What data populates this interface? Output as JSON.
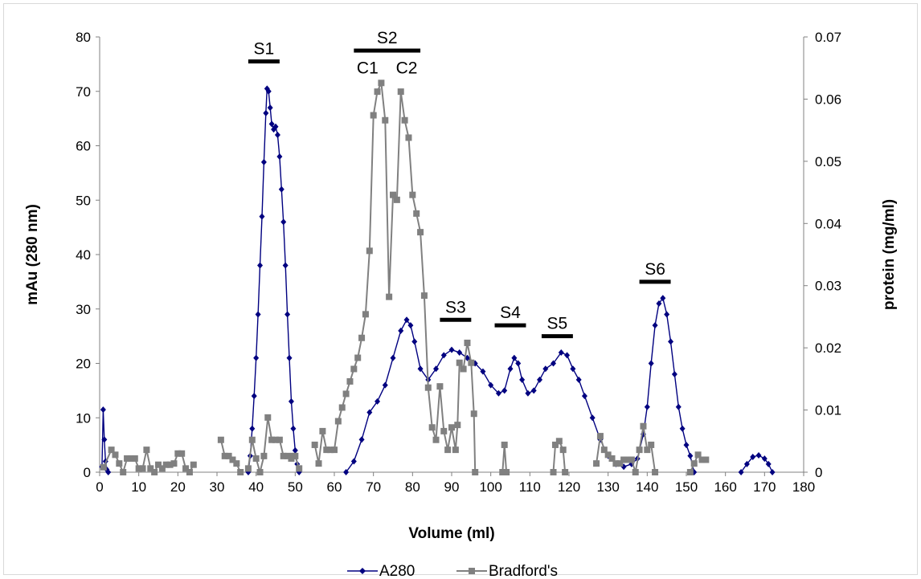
{
  "chart_data": {
    "type": "line",
    "xlabel": "Volume (ml)",
    "ylabel": "mAu (280 nm)",
    "y2label": "protein (mg/ml)",
    "xlim": [
      0,
      180
    ],
    "ylim": [
      0,
      80
    ],
    "y2lim": [
      0,
      0.07
    ],
    "xticks": [
      "0",
      "10",
      "20",
      "30",
      "40",
      "50",
      "60",
      "70",
      "80",
      "90",
      "100",
      "110",
      "120",
      "130",
      "140",
      "150",
      "160",
      "170",
      "180"
    ],
    "yticks": [
      "0",
      "10",
      "20",
      "30",
      "40",
      "50",
      "60",
      "70",
      "80"
    ],
    "y2ticks": [
      "0",
      "0.01",
      "0.02",
      "0.03",
      "0.04",
      "0.05",
      "0.06",
      "0.07"
    ],
    "grid": false,
    "legend_position": "bottom",
    "series": [
      {
        "name": "A280",
        "axis": "left",
        "color": "#000080",
        "marker": "diamond",
        "segments": [
          [
            [
              0.6,
              1
            ],
            [
              0.9,
              11.5
            ],
            [
              1.2,
              6
            ],
            [
              1.5,
              2
            ],
            [
              1.8,
              0.5
            ],
            [
              2.2,
              0
            ]
          ],
          [
            [
              38,
              0
            ],
            [
              38.5,
              3
            ],
            [
              39,
              8
            ],
            [
              39.5,
              14
            ],
            [
              40,
              21
            ],
            [
              40.5,
              29
            ],
            [
              41,
              38
            ],
            [
              41.5,
              47
            ],
            [
              42,
              57
            ],
            [
              42.5,
              66
            ],
            [
              42.8,
              70.5
            ],
            [
              43.2,
              70
            ],
            [
              43.6,
              67
            ],
            [
              44,
              64
            ],
            [
              44.5,
              63
            ],
            [
              45,
              63.5
            ],
            [
              45.5,
              62
            ],
            [
              46,
              58
            ],
            [
              46.5,
              52
            ],
            [
              47,
              46
            ],
            [
              47.5,
              38
            ],
            [
              48,
              29
            ],
            [
              48.5,
              21
            ],
            [
              49,
              13
            ],
            [
              49.5,
              8
            ],
            [
              50,
              4
            ],
            [
              50.5,
              1.5
            ],
            [
              51,
              0
            ]
          ],
          [
            [
              63,
              0
            ],
            [
              65,
              2
            ],
            [
              67,
              6
            ],
            [
              69,
              11
            ],
            [
              71,
              13
            ],
            [
              73,
              16
            ],
            [
              75,
              21
            ],
            [
              77,
              26
            ],
            [
              78.5,
              28
            ],
            [
              79.5,
              27
            ],
            [
              80.5,
              24
            ],
            [
              82,
              19
            ],
            [
              84,
              17
            ],
            [
              86,
              19
            ],
            [
              88,
              21.5
            ],
            [
              90,
              22.5
            ],
            [
              92,
              22
            ],
            [
              94,
              21
            ],
            [
              96,
              20
            ],
            [
              98,
              18.5
            ],
            [
              100,
              16
            ],
            [
              102,
              14.5
            ],
            [
              103.5,
              15
            ],
            [
              105,
              19
            ],
            [
              106,
              21
            ],
            [
              107,
              20
            ],
            [
              108,
              17
            ],
            [
              109.5,
              14.5
            ],
            [
              111,
              15
            ],
            [
              112.5,
              17
            ],
            [
              114,
              19
            ],
            [
              116,
              20
            ],
            [
              118,
              22
            ],
            [
              119.5,
              21.5
            ],
            [
              121,
              19
            ],
            [
              122.5,
              17
            ],
            [
              124,
              14
            ],
            [
              126,
              10
            ],
            [
              128,
              6
            ],
            [
              130,
              3
            ],
            [
              132,
              1.5
            ],
            [
              134,
              1
            ],
            [
              136,
              1.5
            ],
            [
              137.5,
              2.5
            ],
            [
              139,
              7
            ],
            [
              140,
              12
            ],
            [
              141,
              20
            ],
            [
              142,
              27
            ],
            [
              143,
              31
            ],
            [
              144,
              32
            ],
            [
              145,
              29
            ],
            [
              146,
              24
            ],
            [
              147,
              18
            ],
            [
              148,
              12
            ],
            [
              149,
              8
            ],
            [
              150,
              5
            ],
            [
              151,
              3
            ],
            [
              152,
              0
            ]
          ],
          [
            [
              164,
              0
            ],
            [
              165.5,
              1.5
            ],
            [
              167,
              2.8
            ],
            [
              168.5,
              3.1
            ],
            [
              170,
              2.5
            ],
            [
              171,
              1.5
            ],
            [
              172,
              0
            ]
          ]
        ]
      },
      {
        "name": "Bradford's",
        "axis": "right",
        "color": "#808080",
        "marker": "square",
        "segments": [
          [
            [
              1,
              0.0008
            ],
            [
              3,
              0.0036
            ],
            [
              4,
              0.0028
            ],
            [
              5,
              0.0014
            ],
            [
              6,
              0
            ],
            [
              7,
              0.0022
            ],
            [
              8,
              0.0022
            ],
            [
              9,
              0.0022
            ],
            [
              10,
              0.0006
            ],
            [
              11,
              0.0006
            ],
            [
              12,
              0.0036
            ],
            [
              13,
              0.0006
            ],
            [
              14,
              0
            ],
            [
              15,
              0.0012
            ],
            [
              16,
              0.0006
            ],
            [
              17,
              0.0012
            ],
            [
              18,
              0.0012
            ],
            [
              19,
              0.0014
            ],
            [
              20,
              0.003
            ],
            [
              21,
              0.003
            ],
            [
              22,
              0.0006
            ],
            [
              23,
              0
            ],
            [
              24,
              0.0012
            ]
          ],
          [
            [
              31,
              0.0052
            ],
            [
              32,
              0.0026
            ],
            [
              33,
              0.0026
            ],
            [
              34,
              0.002
            ],
            [
              35,
              0.0014
            ],
            [
              36,
              0
            ]
          ],
          [
            [
              38,
              0.0006
            ],
            [
              39,
              0.0052
            ],
            [
              40,
              0.0022
            ],
            [
              41,
              0
            ],
            [
              42,
              0.0026
            ],
            [
              43,
              0.0088
            ],
            [
              44,
              0.0052
            ],
            [
              45,
              0.0052
            ],
            [
              46,
              0.0052
            ],
            [
              47,
              0.0026
            ],
            [
              48,
              0.0026
            ],
            [
              49,
              0.0022
            ],
            [
              49.5,
              0.0026
            ],
            [
              50,
              0.0026
            ],
            [
              51,
              0.0006
            ]
          ],
          [
            [
              55,
              0.0044
            ],
            [
              56,
              0.0014
            ],
            [
              57,
              0.0066
            ],
            [
              58,
              0.0036
            ],
            [
              59,
              0.0036
            ],
            [
              60,
              0.0036
            ],
            [
              61,
              0.0082
            ],
            [
              62,
              0.0104
            ],
            [
              63,
              0.0126
            ],
            [
              64,
              0.0146
            ],
            [
              65,
              0.0166
            ],
            [
              66,
              0.0184
            ],
            [
              67,
              0.0216
            ],
            [
              68,
              0.0254
            ],
            [
              69,
              0.0356
            ],
            [
              70,
              0.0574
            ],
            [
              71,
              0.0612
            ],
            [
              72,
              0.0626
            ],
            [
              73,
              0.0566
            ],
            [
              74,
              0.0282
            ],
            [
              75,
              0.0446
            ],
            [
              76,
              0.0438
            ],
            [
              77,
              0.0612
            ],
            [
              78,
              0.0566
            ],
            [
              79,
              0.0538
            ],
            [
              80,
              0.0446
            ],
            [
              81,
              0.0416
            ],
            [
              82,
              0.0386
            ],
            [
              83,
              0.0284
            ],
            [
              84,
              0.0136
            ],
            [
              85,
              0.0072
            ],
            [
              86,
              0.0052
            ],
            [
              87,
              0.0138
            ],
            [
              88,
              0.0066
            ],
            [
              89,
              0.0036
            ],
            [
              90,
              0.0072
            ],
            [
              91,
              0.0036
            ],
            [
              91.5,
              0.0076
            ],
            [
              92,
              0.0176
            ],
            [
              93,
              0.0166
            ],
            [
              94,
              0.0208
            ],
            [
              95,
              0.0176
            ],
            [
              95.7,
              0.0094
            ],
            [
              96,
              0
            ]
          ],
          [
            [
              103,
              0
            ],
            [
              103.5,
              0.0044
            ],
            [
              104,
              0
            ]
          ],
          [
            [
              116,
              0
            ],
            [
              116.5,
              0.0044
            ],
            [
              117.5,
              0.005
            ],
            [
              118.5,
              0.0036
            ],
            [
              119,
              0
            ]
          ],
          [
            [
              127,
              0.0014
            ],
            [
              128,
              0.0058
            ],
            [
              129,
              0.0036
            ],
            [
              130,
              0.0028
            ],
            [
              131,
              0.0022
            ],
            [
              132,
              0.0014
            ],
            [
              133,
              0.0014
            ],
            [
              134,
              0.002
            ],
            [
              135,
              0.002
            ],
            [
              136,
              0.002
            ],
            [
              137,
              0
            ],
            [
              138,
              0.0036
            ],
            [
              139,
              0.0074
            ],
            [
              140,
              0.0036
            ],
            [
              141,
              0.0044
            ],
            [
              142,
              0
            ]
          ],
          [
            [
              151,
              0
            ],
            [
              152,
              0.0014
            ],
            [
              153,
              0.0028
            ],
            [
              154,
              0.002
            ],
            [
              155,
              0.002
            ]
          ]
        ]
      }
    ],
    "annotations": [
      {
        "label": "S1",
        "x1": 38,
        "x2": 46,
        "y": 75.5
      },
      {
        "label": "S2",
        "x1": 65,
        "x2": 82,
        "y": 77.5
      },
      {
        "label": "C1",
        "x": 68.5,
        "y": 74.5
      },
      {
        "label": "C2",
        "x": 78.5,
        "y": 74.5
      },
      {
        "label": "S3",
        "x1": 87,
        "x2": 95,
        "y": 28
      },
      {
        "label": "S4",
        "x1": 101,
        "x2": 109,
        "y": 27
      },
      {
        "label": "S5",
        "x1": 113,
        "x2": 121,
        "y": 25
      },
      {
        "label": "S6",
        "x1": 138,
        "x2": 146,
        "y": 35
      }
    ]
  }
}
